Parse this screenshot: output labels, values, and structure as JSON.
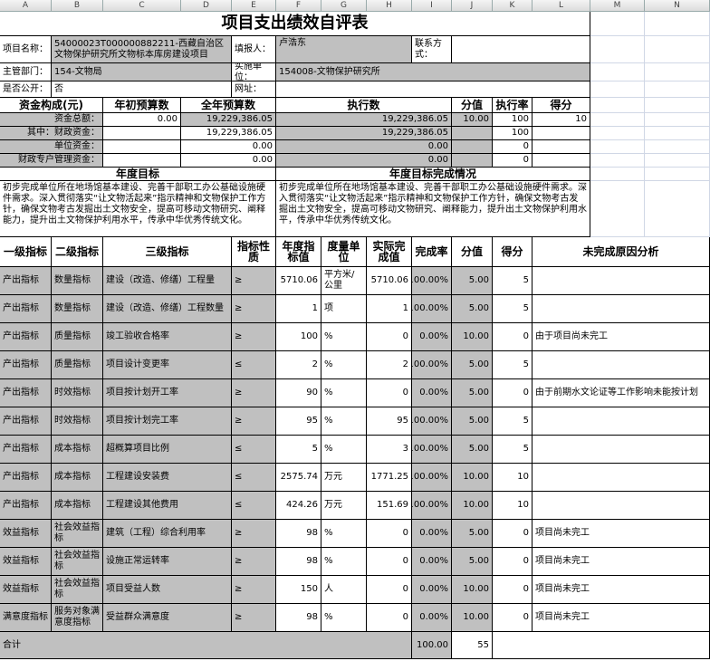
{
  "column_letters": [
    "A",
    "B",
    "C",
    "D",
    "E",
    "F",
    "G",
    "H",
    "I",
    "J",
    "K",
    "L",
    "M",
    "N"
  ],
  "title": "项目支出绩效自评表",
  "info": {
    "project_name_label": "项目名称：",
    "project_name": "54000023T000000882211-西藏自治区文物保护研究所文物标本库房建设项目",
    "filler_label": "填报人：",
    "filler": "卢浩东",
    "contact_label": "联系方式：",
    "dept_label": "主管部门：",
    "dept": "154-文物局",
    "unit_label": "实施单位：",
    "unit": "154008-文物保护研究所",
    "public_label": "是否公开：",
    "public": "否",
    "url_label": "网址："
  },
  "funds": {
    "headers": [
      "资金构成(元)",
      "年初预算数",
      "全年预算数",
      "执行数",
      "分值",
      "执行率",
      "得分"
    ],
    "rows": [
      [
        "资金总额：",
        "0.00",
        "19,229,386.05",
        "19,229,386.05",
        "10.00",
        "100",
        "10"
      ],
      [
        "其中：财政资金：",
        null,
        "19,229,386.05",
        "19,229,386.05",
        null,
        "100",
        null
      ],
      [
        "单位资金：",
        null,
        "0.00",
        "0.00",
        null,
        "0",
        null
      ],
      [
        "财政专户管理资金：",
        null,
        "0.00",
        "0.00",
        null,
        "0",
        null
      ]
    ]
  },
  "goals": {
    "target_header": "年度目标",
    "target": "初步完成单位所在地场馆基本建设、完善干部职工办公基础设施硬件需求。深入贯彻落实“让文物活起来”指示精神和文物保护工作方针，确保文物考古发掘出土文物安全，提高可移动文物研究、阐释能力，提升出土文物保护利用水平，传承中华优秀传统文化。",
    "completion_header": "年度目标完成情况",
    "completion": "初步完成单位所在地场馆基本建设、完善干部职工办公基础设施硬件需求。深入贯彻落实“让文物活起来”指示精神和文物保护工作方针，确保文物考古发掘出土文物安全，提高可移动文物研究、阐释能力，提升出土文物保护利用水平，传承中华优秀传统文化。"
  },
  "indicators": {
    "headers": [
      "一级指标",
      "二级指标",
      "三级指标",
      "指标性质",
      "年度指标值",
      "度量单位",
      "实际完成值",
      "完成率",
      "分值",
      "得分",
      "未完成原因分析"
    ],
    "rows": [
      [
        "产出指标",
        "数量指标",
        "建设（改造、修缮）工程量",
        "≥",
        "5710.06",
        "平方米/公里",
        "5710.06",
        "100.00%",
        "5.00",
        "5",
        null
      ],
      [
        "产出指标",
        "数量指标",
        "建设（改造、修缮）工程数量",
        "≥",
        "1",
        "项",
        "1",
        "100.00%",
        "5.00",
        "5",
        null
      ],
      [
        "产出指标",
        "质量指标",
        "竣工验收合格率",
        "≥",
        "100",
        "%",
        "0",
        "0.00%",
        "10.00",
        "0",
        "由于项目尚未完工"
      ],
      [
        "产出指标",
        "质量指标",
        "项目设计变更率",
        "≤",
        "2",
        "%",
        "2",
        "100.00%",
        "5.00",
        "5",
        null
      ],
      [
        "产出指标",
        "时效指标",
        "项目按计划开工率",
        "≥",
        "90",
        "%",
        "0",
        "0.00%",
        "5.00",
        "0",
        "由于前期水文论证等工作影响未能按计划"
      ],
      [
        "产出指标",
        "时效指标",
        "项目按计划完工率",
        "≥",
        "95",
        "%",
        "95",
        "100.00%",
        "5.00",
        "5",
        null
      ],
      [
        "产出指标",
        "成本指标",
        "超概算项目比例",
        "≤",
        "5",
        "%",
        "3",
        "100.00%",
        "5.00",
        "5",
        null
      ],
      [
        "产出指标",
        "成本指标",
        "工程建设安装费",
        "≤",
        "2575.74",
        "万元",
        "1771.25",
        "100.00%",
        "10.00",
        "10",
        null
      ],
      [
        "产出指标",
        "成本指标",
        "工程建设其他费用",
        "≤",
        "424.26",
        "万元",
        "151.69",
        "100.00%",
        "10.00",
        "10",
        null
      ],
      [
        "效益指标",
        "社会效益指标",
        "建筑（工程）综合利用率",
        "≥",
        "98",
        "%",
        "0",
        "0.00%",
        "5.00",
        "0",
        "项目尚未完工"
      ],
      [
        "效益指标",
        "社会效益指标",
        "设施正常运转率",
        "≥",
        "98",
        "%",
        "0",
        "0.00%",
        "5.00",
        "0",
        "项目尚未完工"
      ],
      [
        "效益指标",
        "社会效益指标",
        "项目受益人数",
        "≥",
        "150",
        "人",
        "0",
        "0.00%",
        "10.00",
        "0",
        "项目尚未完工"
      ],
      [
        "满意度指标",
        "服务对象满意度指标",
        "受益群众满意度",
        "≥",
        "98",
        "%",
        "0",
        "0.00%",
        "10.00",
        "0",
        "项目尚未完工"
      ]
    ],
    "total_label": "合计",
    "total_score_value": "100.00",
    "total_score": "55"
  }
}
